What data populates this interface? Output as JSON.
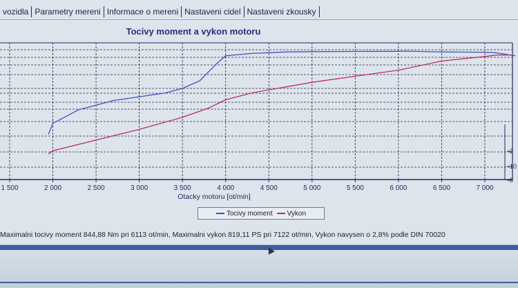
{
  "tabs": [
    {
      "label": "vozidla"
    },
    {
      "label": "Parametry mereni"
    },
    {
      "label": "Informace o mereni"
    },
    {
      "label": "Nastaveni cidel"
    },
    {
      "label": "Nastaveni zkousky"
    }
  ],
  "status_text": "Maximalni tocivy moment 844,88 Nm pri 6113 ot/min,  Maximalni vykon 819,11 PS pri 7122 ot/min,  Vykon navysen o 2,8% podle DIN 70020",
  "colors": {
    "torque": "#3a4fc8",
    "power": "#c0286a",
    "grid": "#202838",
    "axis": "#1f2c60",
    "accent": "#3e5e9a"
  },
  "chart_data": {
    "type": "line",
    "title": "Tocivy moment a vykon motoru",
    "xlabel": "Otacky motoru [ot/min]",
    "ylabel": "",
    "xlim": [
      1500,
      7400
    ],
    "x_ticks": [
      1500,
      2000,
      2500,
      3000,
      3500,
      4000,
      4500,
      5000,
      5500,
      6000,
      6500,
      7000
    ],
    "x_tick_labels": [
      "1 500",
      "2 000",
      "2 500",
      "3 000",
      "3 500",
      "4 000",
      "4 500",
      "5 000",
      "5 500",
      "6 000",
      "6 500",
      "7 000"
    ],
    "right_axis_visible_labels": [
      "2",
      "10",
      "0"
    ],
    "grid": true,
    "legend": "bottom-center",
    "series": [
      {
        "name": "Tocivy moment",
        "unit": "Nm",
        "x": [
          1950,
          2000,
          2300,
          2700,
          3000,
          3300,
          3500,
          3700,
          3900,
          4000,
          4300,
          4700,
          5000,
          5500,
          6000,
          6113,
          6500,
          7000,
          7122,
          7350
        ],
        "y": [
          300,
          370,
          460,
          520,
          545,
          570,
          600,
          650,
          765,
          815,
          830,
          840,
          842,
          843,
          844,
          844.88,
          840,
          838,
          835,
          815
        ]
      },
      {
        "name": "Vykon",
        "unit": "PS",
        "x": [
          1950,
          2000,
          2500,
          3000,
          3500,
          3800,
          4000,
          4300,
          4700,
          5000,
          5500,
          6000,
          6500,
          7000,
          7122,
          7300
        ],
        "y": [
          170,
          190,
          260,
          330,
          410,
          470,
          525,
          570,
          610,
          640,
          680,
          720,
          780,
          810,
          819.11,
          820
        ]
      }
    ]
  }
}
